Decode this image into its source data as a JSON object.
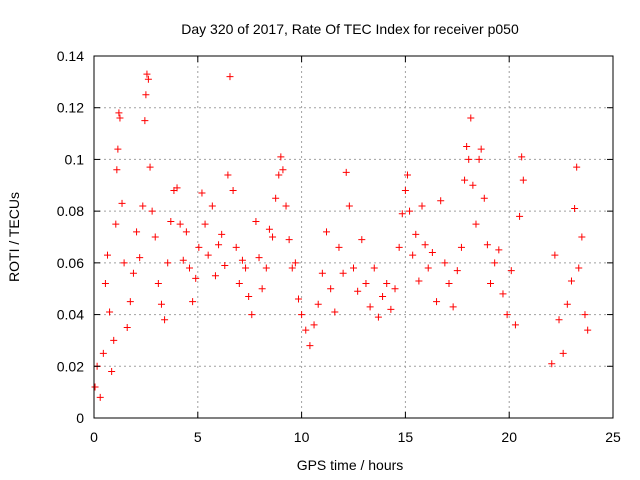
{
  "chart_data": {
    "type": "scatter",
    "title": "Day 320 of 2017, Rate Of TEC Index for receiver p050",
    "xlabel": "GPS time / hours",
    "ylabel": "ROTI / TECUs",
    "xlim": [
      0,
      25
    ],
    "ylim": [
      0,
      0.14
    ],
    "x_ticks": [
      "0",
      "5",
      "10",
      "15",
      "20",
      "25"
    ],
    "y_ticks": [
      "0",
      "0.02",
      "0.04",
      "0.06",
      "0.08",
      "0.1",
      "0.12",
      "0.14"
    ],
    "grid": true,
    "marker": "+",
    "color": "#ff0000",
    "series": [
      {
        "points": [
          [
            0.05,
            0.012
          ],
          [
            0.15,
            0.02
          ],
          [
            0.3,
            0.008
          ],
          [
            0.45,
            0.025
          ],
          [
            0.55,
            0.052
          ],
          [
            0.65,
            0.063
          ],
          [
            0.75,
            0.041
          ],
          [
            0.85,
            0.018
          ],
          [
            0.95,
            0.03
          ],
          [
            1.05,
            0.075
          ],
          [
            1.1,
            0.096
          ],
          [
            1.15,
            0.104
          ],
          [
            1.2,
            0.118
          ],
          [
            1.25,
            0.116
          ],
          [
            1.35,
            0.083
          ],
          [
            1.45,
            0.06
          ],
          [
            1.6,
            0.035
          ],
          [
            1.75,
            0.045
          ],
          [
            1.9,
            0.056
          ],
          [
            2.05,
            0.072
          ],
          [
            2.2,
            0.062
          ],
          [
            2.35,
            0.082
          ],
          [
            2.45,
            0.115
          ],
          [
            2.5,
            0.125
          ],
          [
            2.55,
            0.133
          ],
          [
            2.62,
            0.131
          ],
          [
            2.7,
            0.097
          ],
          [
            2.8,
            0.08
          ],
          [
            2.95,
            0.07
          ],
          [
            3.1,
            0.052
          ],
          [
            3.25,
            0.044
          ],
          [
            3.4,
            0.038
          ],
          [
            3.55,
            0.06
          ],
          [
            3.7,
            0.076
          ],
          [
            3.85,
            0.088
          ],
          [
            4.0,
            0.089
          ],
          [
            4.15,
            0.075
          ],
          [
            4.3,
            0.061
          ],
          [
            4.45,
            0.072
          ],
          [
            4.6,
            0.058
          ],
          [
            4.75,
            0.045
          ],
          [
            4.9,
            0.054
          ],
          [
            5.05,
            0.066
          ],
          [
            5.2,
            0.087
          ],
          [
            5.35,
            0.075
          ],
          [
            5.5,
            0.063
          ],
          [
            5.7,
            0.082
          ],
          [
            5.85,
            0.055
          ],
          [
            6.0,
            0.067
          ],
          [
            6.15,
            0.071
          ],
          [
            6.3,
            0.059
          ],
          [
            6.45,
            0.094
          ],
          [
            6.55,
            0.132
          ],
          [
            6.7,
            0.088
          ],
          [
            6.85,
            0.066
          ],
          [
            7.0,
            0.052
          ],
          [
            7.15,
            0.061
          ],
          [
            7.3,
            0.058
          ],
          [
            7.45,
            0.047
          ],
          [
            7.6,
            0.04
          ],
          [
            7.8,
            0.076
          ],
          [
            7.95,
            0.062
          ],
          [
            8.1,
            0.05
          ],
          [
            8.3,
            0.058
          ],
          [
            8.45,
            0.073
          ],
          [
            8.6,
            0.07
          ],
          [
            8.75,
            0.085
          ],
          [
            8.9,
            0.094
          ],
          [
            9.0,
            0.101
          ],
          [
            9.1,
            0.096
          ],
          [
            9.25,
            0.082
          ],
          [
            9.4,
            0.069
          ],
          [
            9.55,
            0.058
          ],
          [
            9.7,
            0.06
          ],
          [
            9.85,
            0.046
          ],
          [
            10.0,
            0.04
          ],
          [
            10.2,
            0.034
          ],
          [
            10.4,
            0.028
          ],
          [
            10.6,
            0.036
          ],
          [
            10.8,
            0.044
          ],
          [
            11.0,
            0.056
          ],
          [
            11.2,
            0.072
          ],
          [
            11.4,
            0.05
          ],
          [
            11.6,
            0.041
          ],
          [
            11.8,
            0.066
          ],
          [
            12.0,
            0.056
          ],
          [
            12.15,
            0.095
          ],
          [
            12.3,
            0.082
          ],
          [
            12.5,
            0.058
          ],
          [
            12.7,
            0.049
          ],
          [
            12.9,
            0.069
          ],
          [
            13.1,
            0.052
          ],
          [
            13.3,
            0.043
          ],
          [
            13.5,
            0.058
          ],
          [
            13.7,
            0.039
          ],
          [
            13.9,
            0.047
          ],
          [
            14.1,
            0.052
          ],
          [
            14.3,
            0.042
          ],
          [
            14.5,
            0.05
          ],
          [
            14.7,
            0.066
          ],
          [
            14.85,
            0.079
          ],
          [
            15.0,
            0.088
          ],
          [
            15.1,
            0.094
          ],
          [
            15.2,
            0.08
          ],
          [
            15.35,
            0.063
          ],
          [
            15.5,
            0.071
          ],
          [
            15.65,
            0.053
          ],
          [
            15.8,
            0.082
          ],
          [
            15.95,
            0.067
          ],
          [
            16.1,
            0.058
          ],
          [
            16.3,
            0.064
          ],
          [
            16.5,
            0.045
          ],
          [
            16.7,
            0.084
          ],
          [
            16.9,
            0.06
          ],
          [
            17.1,
            0.052
          ],
          [
            17.3,
            0.043
          ],
          [
            17.5,
            0.057
          ],
          [
            17.7,
            0.066
          ],
          [
            17.85,
            0.092
          ],
          [
            17.95,
            0.105
          ],
          [
            18.05,
            0.1
          ],
          [
            18.15,
            0.116
          ],
          [
            18.25,
            0.09
          ],
          [
            18.4,
            0.075
          ],
          [
            18.55,
            0.1
          ],
          [
            18.65,
            0.104
          ],
          [
            18.8,
            0.085
          ],
          [
            18.95,
            0.067
          ],
          [
            19.1,
            0.052
          ],
          [
            19.3,
            0.06
          ],
          [
            19.5,
            0.065
          ],
          [
            19.7,
            0.048
          ],
          [
            19.9,
            0.04
          ],
          [
            20.1,
            0.057
          ],
          [
            20.3,
            0.036
          ],
          [
            20.5,
            0.078
          ],
          [
            20.6,
            0.101
          ],
          [
            20.68,
            0.092
          ],
          [
            22.05,
            0.021
          ],
          [
            22.2,
            0.063
          ],
          [
            22.4,
            0.038
          ],
          [
            22.6,
            0.025
          ],
          [
            22.8,
            0.044
          ],
          [
            23.0,
            0.053
          ],
          [
            23.15,
            0.081
          ],
          [
            23.25,
            0.097
          ],
          [
            23.35,
            0.058
          ],
          [
            23.5,
            0.07
          ],
          [
            23.65,
            0.04
          ],
          [
            23.78,
            0.034
          ]
        ]
      }
    ]
  }
}
